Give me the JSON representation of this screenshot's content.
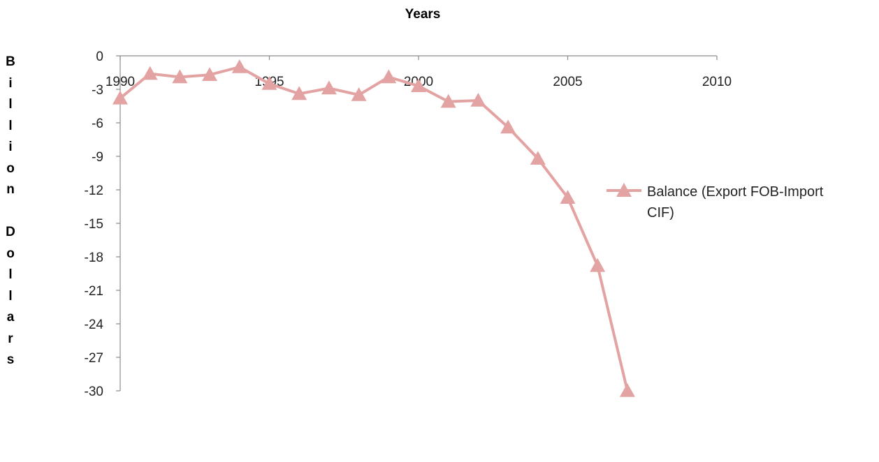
{
  "chart_data": {
    "type": "line",
    "title": "",
    "xlabel": "Years",
    "ylabel": "Billion Dollars",
    "xlim": [
      1990,
      2010
    ],
    "ylim": [
      -30,
      0
    ],
    "x_ticks": [
      1990,
      1995,
      2000,
      2005,
      2010
    ],
    "x_tick_labels": [
      "1990",
      "1995",
      "2000",
      "2005",
      "2010"
    ],
    "y_ticks": [
      0,
      -3,
      -6,
      -9,
      -12,
      -15,
      -18,
      -21,
      -24,
      -27,
      -30
    ],
    "y_tick_labels": [
      "0",
      "-3",
      "-6",
      "-9",
      "-12",
      "-15",
      "-18",
      "-21",
      "-24",
      "-27",
      "-30"
    ],
    "x_axis_position": "top",
    "grid": false,
    "legend_position": "right",
    "series": [
      {
        "name": "Balance (Export FOB-Import CIF)",
        "legend_lines": [
          "Balance (Export FOB-Import",
          "CIF)"
        ],
        "color": "#e3a3a2",
        "marker": "triangle",
        "x": [
          1990,
          1991,
          1992,
          1993,
          1994,
          1995,
          1996,
          1997,
          1998,
          1999,
          2000,
          2001,
          2002,
          2003,
          2004,
          2005,
          2006,
          2007
        ],
        "values": [
          -3.8,
          -1.6,
          -1.9,
          -1.7,
          -1.0,
          -2.5,
          -3.4,
          -2.9,
          -3.5,
          -1.9,
          -2.7,
          -4.1,
          -4.0,
          -6.4,
          -9.2,
          -12.7,
          -18.8,
          -30.0
        ]
      }
    ]
  }
}
